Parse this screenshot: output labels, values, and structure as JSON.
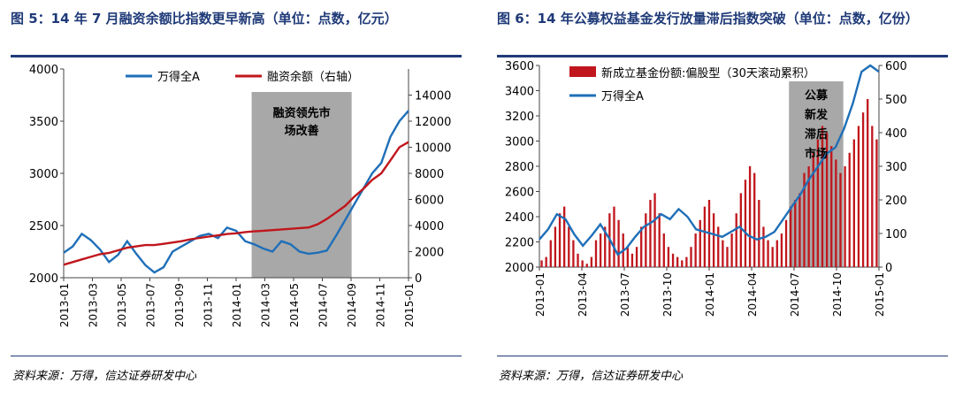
{
  "colors": {
    "blue": "#1f6fb8",
    "red": "#c0161c",
    "shade": "#a8a8a8",
    "title": "#1f3a78"
  },
  "panels": [
    {
      "title": "图 5：14 年 7 月融资余额比指数更早新高（单位：点数，亿元）",
      "source": "资料来源：万得，信达证券研发中心"
    },
    {
      "title": "图 6：14 年公募权益基金发行放量滞后指数突破（单位：点数，亿份）",
      "source": "资料来源：万得，信达证券研发中心"
    }
  ],
  "chart_data": [
    {
      "type": "line",
      "x_ticks": [
        "2013-01",
        "2013-03",
        "2013-05",
        "2013-07",
        "2013-09",
        "2013-11",
        "2014-01",
        "2014-03",
        "2014-05",
        "2014-07",
        "2014-09",
        "2014-11",
        "2015-01"
      ],
      "ylim_left": [
        2000,
        4000
      ],
      "yticks_left": [
        "2000",
        "2500",
        "3000",
        "3500",
        "4000"
      ],
      "ylim_right": [
        0,
        16000
      ],
      "yticks_right": [
        "0",
        "2000",
        "4000",
        "6000",
        "8000",
        "10000",
        "12000",
        "14000"
      ],
      "series": [
        {
          "name": "万得全A",
          "axis": "left",
          "values": [
            2240,
            2300,
            2420,
            2360,
            2270,
            2150,
            2220,
            2350,
            2230,
            2120,
            2050,
            2100,
            2250,
            2300,
            2350,
            2400,
            2420,
            2380,
            2480,
            2450,
            2350,
            2320,
            2280,
            2250,
            2350,
            2320,
            2250,
            2230,
            2240,
            2260,
            2400,
            2550,
            2700,
            2850,
            3000,
            3100,
            3350,
            3500,
            3600
          ]
        },
        {
          "name": "融资余额（右轴）",
          "axis": "right",
          "values": [
            1000,
            1200,
            1400,
            1600,
            1800,
            1900,
            2100,
            2300,
            2400,
            2500,
            2500,
            2600,
            2700,
            2800,
            2950,
            3050,
            3150,
            3250,
            3350,
            3400,
            3500,
            3550,
            3600,
            3650,
            3700,
            3750,
            3800,
            3850,
            4100,
            4500,
            5000,
            5500,
            6200,
            6800,
            7500,
            8000,
            9000,
            10000,
            10400
          ]
        }
      ],
      "annotation": {
        "label": "融资领先市场改善",
        "from": "2014-02",
        "to": "2014-09"
      },
      "legend_position": "top"
    },
    {
      "type": "bar+line",
      "x_ticks": [
        "2013-01",
        "2013-04",
        "2013-07",
        "2013-10",
        "2014-01",
        "2014-04",
        "2014-07",
        "2014-10",
        "2015-01"
      ],
      "ylim_left": [
        2000,
        3600
      ],
      "yticks_left": [
        "2000",
        "2200",
        "2400",
        "2600",
        "2800",
        "3000",
        "3200",
        "3400",
        "3600"
      ],
      "ylim_right": [
        0,
        600
      ],
      "yticks_right": [
        "0",
        "100",
        "200",
        "300",
        "400",
        "500",
        "600"
      ],
      "series": [
        {
          "name": "新成立基金份额:偏股型（30天滚动累积）",
          "type": "bar",
          "axis": "right",
          "values": [
            20,
            30,
            80,
            120,
            160,
            180,
            120,
            80,
            40,
            20,
            10,
            30,
            80,
            100,
            120,
            160,
            180,
            140,
            100,
            60,
            40,
            60,
            120,
            160,
            200,
            220,
            160,
            100,
            60,
            40,
            30,
            20,
            30,
            60,
            100,
            140,
            180,
            200,
            160,
            120,
            80,
            60,
            100,
            160,
            220,
            260,
            300,
            280,
            200,
            120,
            80,
            60,
            80,
            100,
            140,
            180,
            200,
            220,
            280,
            300,
            340,
            380,
            420,
            400,
            360,
            320,
            280,
            300,
            340,
            380,
            420,
            460,
            500,
            420,
            380
          ]
        },
        {
          "name": "万得全A",
          "type": "line",
          "axis": "left",
          "values": [
            2220,
            2300,
            2420,
            2380,
            2260,
            2170,
            2250,
            2340,
            2230,
            2100,
            2150,
            2240,
            2320,
            2360,
            2420,
            2380,
            2460,
            2400,
            2300,
            2280,
            2260,
            2240,
            2280,
            2320,
            2250,
            2220,
            2240,
            2280,
            2380,
            2480,
            2580,
            2700,
            2800,
            2900,
            2950,
            3100,
            3300,
            3550,
            3600,
            3550
          ]
        }
      ],
      "annotation": {
        "label": "公募新发滞后市场",
        "from": "2014-07",
        "to": "2014-11"
      },
      "legend_position": "top-left"
    }
  ]
}
